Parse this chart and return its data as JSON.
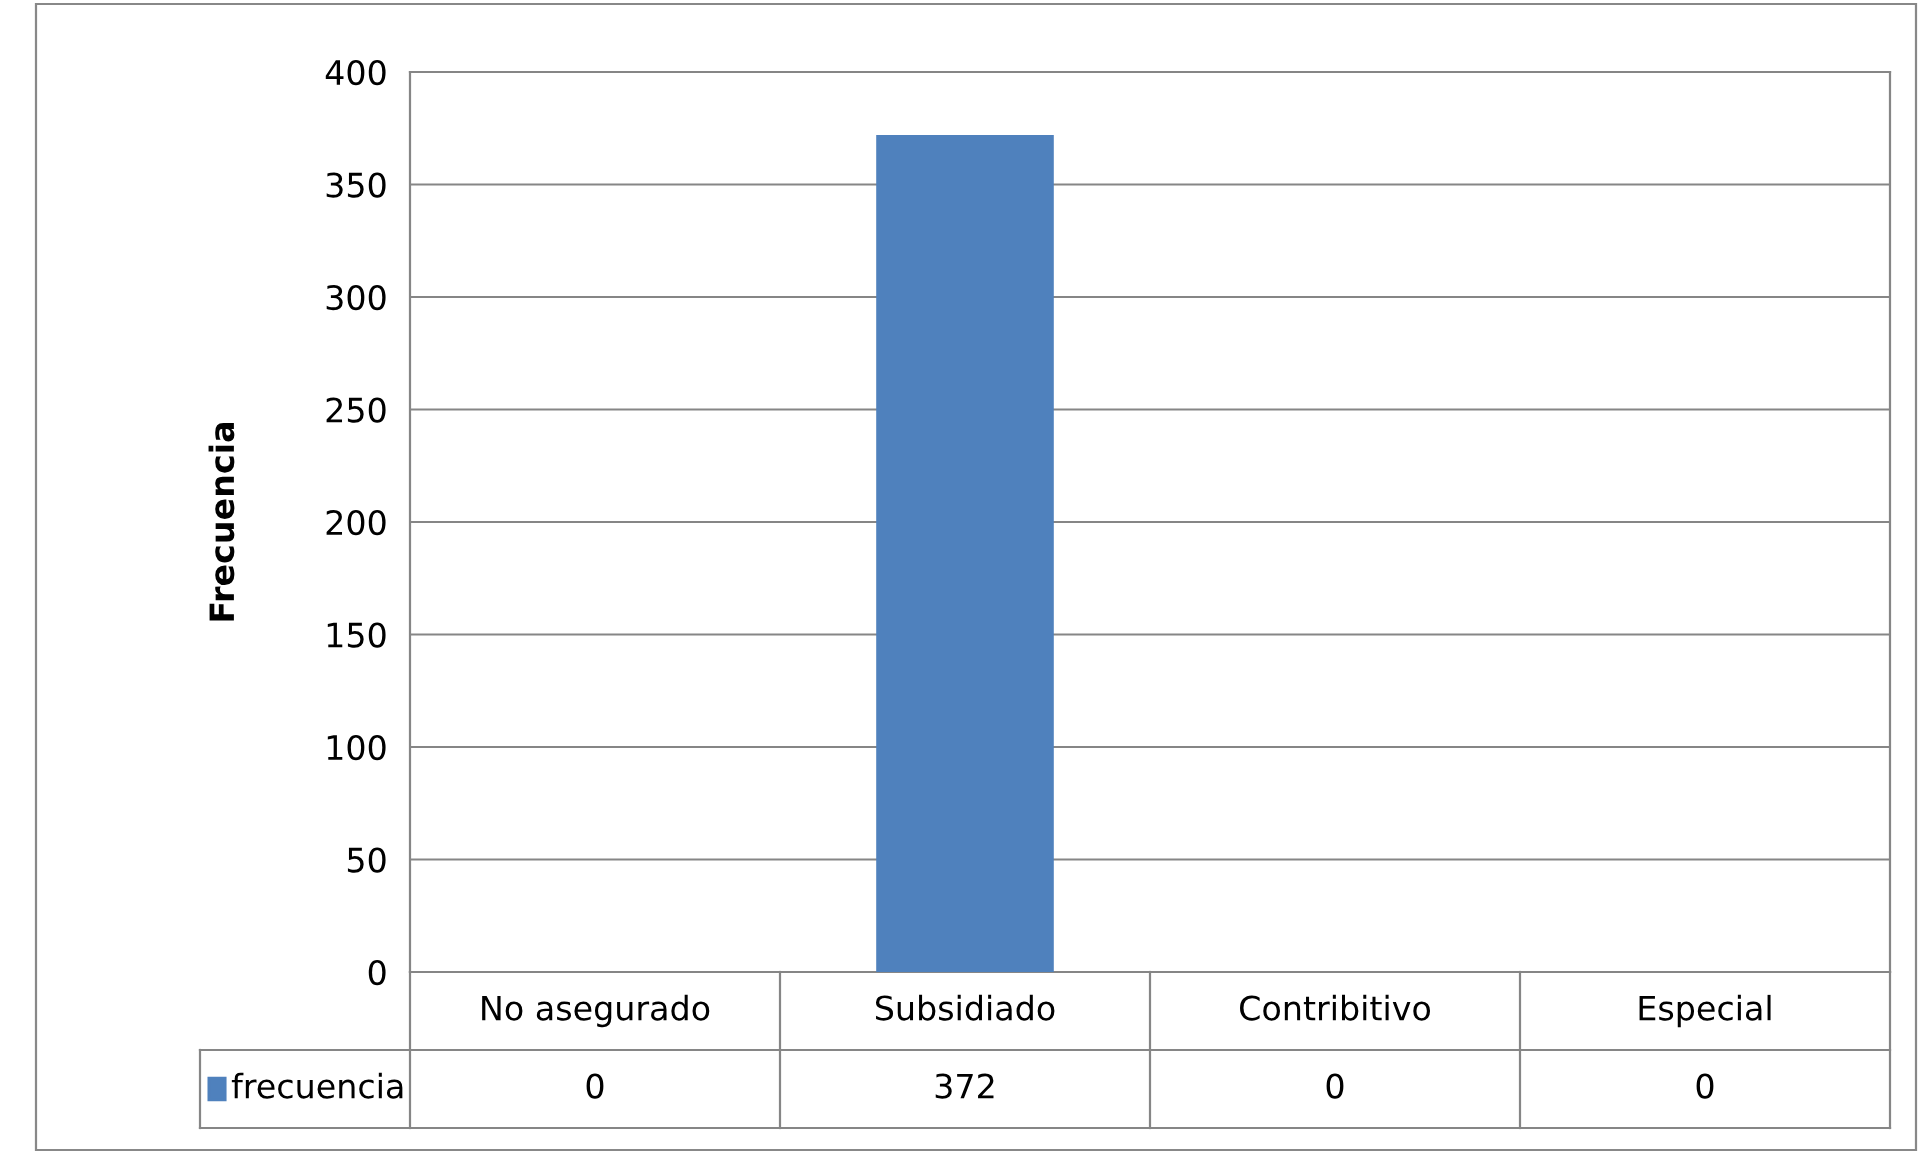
{
  "chart_data": {
    "type": "bar",
    "ylabel": "Frecuencia",
    "categories": [
      "No asegurado",
      "Subsidiado",
      "Contribitivo",
      "Especial"
    ],
    "series": [
      {
        "name": "frecuencia",
        "color": "#4f81bd",
        "values": [
          0,
          372,
          0,
          0
        ]
      }
    ],
    "ylim": [
      0,
      400
    ],
    "yticks": [
      0,
      50,
      100,
      150,
      200,
      250,
      300,
      350,
      400
    ],
    "grid": "y",
    "data_labels": true
  }
}
